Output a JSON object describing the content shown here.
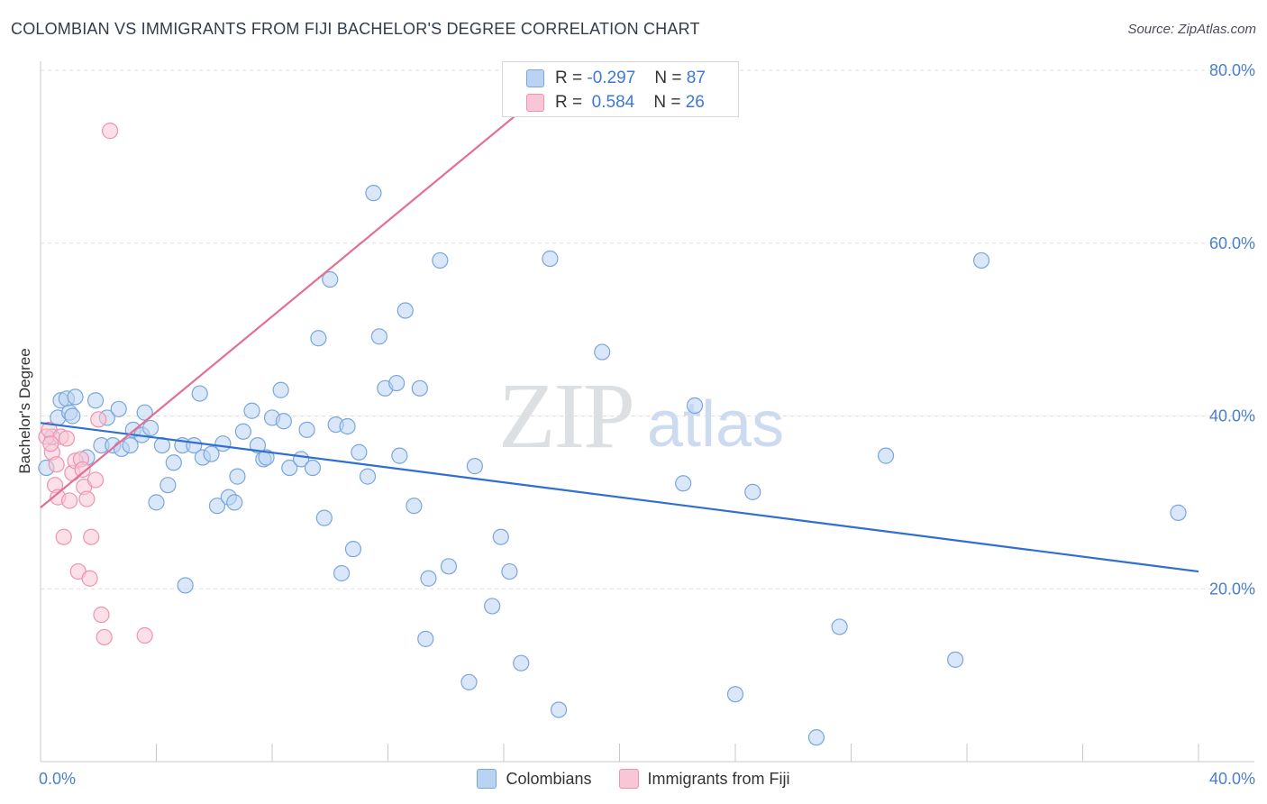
{
  "header": {
    "title": "COLOMBIAN VS IMMIGRANTS FROM FIJI BACHELOR'S DEGREE CORRELATION CHART",
    "source": "Source: ZipAtlas.com"
  },
  "watermark": {
    "zip": "ZIP",
    "atlas": "atlas"
  },
  "legend_top": {
    "rows": [
      {
        "r_label": "R =",
        "r_value": "-0.297",
        "n_label": "N =",
        "n_value": "87"
      },
      {
        "r_label": "R =",
        "r_value": "0.584",
        "n_label": "N =",
        "n_value": "26"
      }
    ]
  },
  "legend_bottom": {
    "items": [
      {
        "label": "Colombians"
      },
      {
        "label": "Immigrants from Fiji"
      }
    ]
  },
  "colors": {
    "blue_fill": "#b9d3f3",
    "blue_stroke": "#7aa6dc",
    "blue_line": "#2f6fd0",
    "pink_fill": "#f9c6d6",
    "pink_stroke": "#ee93b0",
    "pink_line": "#e46f94",
    "tick_text": "#4a7fd0",
    "grid": "#dddddd"
  },
  "chart_data": {
    "type": "scatter",
    "title": "COLOMBIAN VS IMMIGRANTS FROM FIJI BACHELOR'S DEGREE CORRELATION CHART",
    "xlabel": "",
    "ylabel": "Bachelor's Degree",
    "xlim": [
      0,
      40
    ],
    "ylim": [
      0,
      80
    ],
    "x_tick_labels": [
      "0.0%",
      "40.0%"
    ],
    "y_ticks": [
      20,
      40,
      60,
      80
    ],
    "y_tick_labels": [
      "20.0%",
      "40.0%",
      "60.0%",
      "80.0%"
    ],
    "grid": true,
    "legend_position": "top-center",
    "series": [
      {
        "name": "Colombians",
        "r": -0.297,
        "n": 87,
        "trend": {
          "x": [
            0,
            40
          ],
          "y": [
            39.2,
            22.0
          ]
        },
        "points": [
          [
            0.4,
            37.6
          ],
          [
            0.6,
            39.8
          ],
          [
            0.7,
            41.8
          ],
          [
            0.9,
            42.0
          ],
          [
            1.0,
            40.4
          ],
          [
            1.1,
            40.0
          ],
          [
            1.2,
            42.2
          ],
          [
            1.6,
            35.2
          ],
          [
            1.9,
            41.8
          ],
          [
            2.1,
            36.6
          ],
          [
            2.3,
            39.8
          ],
          [
            2.5,
            36.6
          ],
          [
            2.7,
            40.8
          ],
          [
            2.8,
            36.2
          ],
          [
            3.1,
            36.6
          ],
          [
            3.2,
            38.4
          ],
          [
            3.5,
            37.8
          ],
          [
            3.6,
            40.4
          ],
          [
            3.8,
            38.6
          ],
          [
            4.0,
            30.0
          ],
          [
            4.2,
            36.6
          ],
          [
            4.4,
            32.0
          ],
          [
            4.6,
            34.6
          ],
          [
            4.9,
            36.6
          ],
          [
            5.0,
            20.4
          ],
          [
            5.3,
            36.6
          ],
          [
            5.5,
            42.6
          ],
          [
            5.6,
            35.2
          ],
          [
            5.9,
            35.6
          ],
          [
            6.1,
            29.6
          ],
          [
            6.3,
            36.8
          ],
          [
            6.5,
            30.6
          ],
          [
            6.7,
            30.0
          ],
          [
            6.8,
            33.0
          ],
          [
            7.0,
            38.2
          ],
          [
            7.3,
            40.6
          ],
          [
            7.5,
            36.6
          ],
          [
            7.7,
            35.0
          ],
          [
            7.8,
            35.2
          ],
          [
            8.0,
            39.8
          ],
          [
            8.3,
            43.0
          ],
          [
            8.4,
            39.4
          ],
          [
            8.6,
            34.0
          ],
          [
            9.0,
            35.0
          ],
          [
            9.2,
            38.4
          ],
          [
            9.4,
            34.0
          ],
          [
            9.6,
            49.0
          ],
          [
            9.8,
            28.2
          ],
          [
            10.0,
            55.8
          ],
          [
            10.2,
            39.0
          ],
          [
            10.4,
            21.8
          ],
          [
            10.6,
            38.8
          ],
          [
            10.8,
            24.6
          ],
          [
            11.0,
            35.8
          ],
          [
            11.3,
            33.0
          ],
          [
            11.5,
            65.8
          ],
          [
            11.7,
            49.2
          ],
          [
            11.9,
            43.2
          ],
          [
            12.3,
            43.8
          ],
          [
            12.4,
            35.4
          ],
          [
            12.6,
            52.2
          ],
          [
            12.9,
            29.6
          ],
          [
            13.1,
            43.2
          ],
          [
            13.3,
            14.2
          ],
          [
            13.4,
            21.2
          ],
          [
            13.8,
            58.0
          ],
          [
            14.1,
            22.6
          ],
          [
            14.8,
            9.2
          ],
          [
            15.0,
            34.2
          ],
          [
            15.6,
            18.0
          ],
          [
            15.9,
            26.0
          ],
          [
            16.2,
            22.0
          ],
          [
            16.6,
            11.4
          ],
          [
            17.6,
            58.2
          ],
          [
            17.9,
            6.0
          ],
          [
            19.4,
            47.4
          ],
          [
            22.2,
            32.2
          ],
          [
            22.6,
            41.2
          ],
          [
            24.0,
            7.8
          ],
          [
            24.6,
            31.2
          ],
          [
            26.8,
            2.8
          ],
          [
            27.6,
            15.6
          ],
          [
            29.2,
            35.4
          ],
          [
            31.6,
            11.8
          ],
          [
            32.5,
            58.0
          ],
          [
            39.3,
            28.8
          ],
          [
            0.2,
            34.0
          ]
        ]
      },
      {
        "name": "Immigrants from Fiji",
        "r": 0.584,
        "n": 26,
        "trend": {
          "x": [
            0,
            18.3
          ],
          "y": [
            29.4,
            80.0
          ]
        },
        "points": [
          [
            0.2,
            37.6
          ],
          [
            0.3,
            38.4
          ],
          [
            0.4,
            35.8
          ],
          [
            0.5,
            32.0
          ],
          [
            0.6,
            30.6
          ],
          [
            0.7,
            37.6
          ],
          [
            0.8,
            26.0
          ],
          [
            0.9,
            37.4
          ],
          [
            1.0,
            30.2
          ],
          [
            1.1,
            33.4
          ],
          [
            1.2,
            34.8
          ],
          [
            1.3,
            22.0
          ],
          [
            1.4,
            35.0
          ],
          [
            1.5,
            31.8
          ],
          [
            1.6,
            30.4
          ],
          [
            1.7,
            21.2
          ],
          [
            1.75,
            26.0
          ],
          [
            1.9,
            32.6
          ],
          [
            2.0,
            39.6
          ],
          [
            2.1,
            17.0
          ],
          [
            2.2,
            14.4
          ],
          [
            2.4,
            73.0
          ],
          [
            3.6,
            14.6
          ],
          [
            0.35,
            36.8
          ],
          [
            1.45,
            33.8
          ],
          [
            0.55,
            34.4
          ]
        ]
      }
    ]
  }
}
